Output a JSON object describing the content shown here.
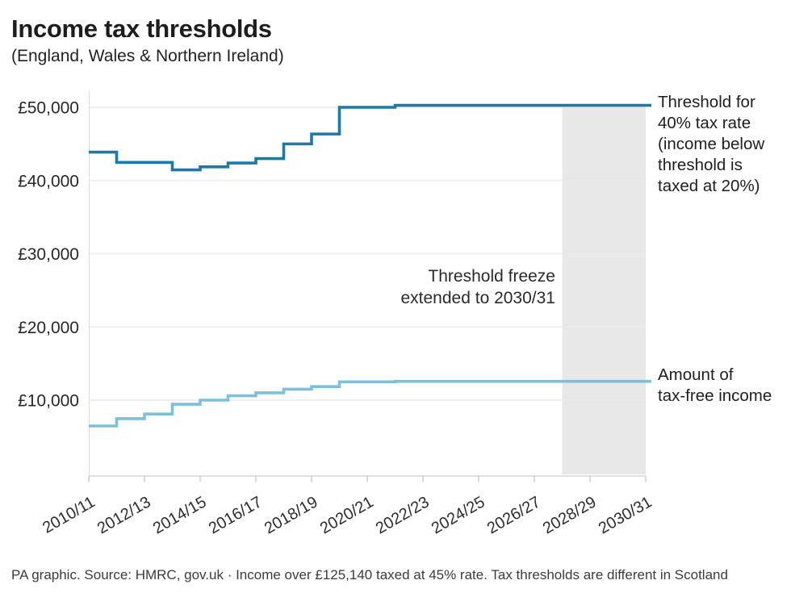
{
  "header": {
    "title": "Income tax thresholds",
    "subtitle": "(England, Wales & Northern Ireland)"
  },
  "annotations": {
    "freeze_note": "Threshold freeze\nextended to 2030/31",
    "series1_label": "Threshold for\n40% tax rate\n(income below\nthreshold is\ntaxed at 20%)",
    "series2_label": "Amount of\ntax-free income"
  },
  "footer": {
    "source_line": "PA graphic. Source: HMRC, gov.uk · Income over £125,140 taxed at 45% rate. Tax thresholds are different in Scotland"
  },
  "colors": {
    "series1": "#1a7ba8",
    "series2": "#7cc0da",
    "highlight_band": "#e8e8e8",
    "gridline": "#ececec",
    "axis_line": "#d8d8d8",
    "tick": "#c9c9c9",
    "tick_label": "#2d2d2d"
  },
  "chart_data": {
    "type": "line",
    "subtype": "step-after",
    "title": "Income tax thresholds",
    "subtitle": "(England, Wales & Northern Ireland)",
    "xlabel": "",
    "ylabel": "",
    "ylim": [
      0,
      52000
    ],
    "grid": "horizontal",
    "legend_position": "right-of-line-ends",
    "categories": [
      "2010/11",
      "2011/12",
      "2012/13",
      "2013/14",
      "2014/15",
      "2015/16",
      "2016/17",
      "2017/18",
      "2018/19",
      "2019/20",
      "2020/21",
      "2021/22",
      "2022/23",
      "2023/24",
      "2024/25",
      "2025/26",
      "2026/27",
      "2027/28",
      "2028/29",
      "2029/30",
      "2030/31"
    ],
    "series": [
      {
        "name": "Threshold for 40% tax rate (income below threshold is taxed at 20%)",
        "color": "#1a7ba8",
        "values": [
          43875,
          42475,
          42475,
          41450,
          41865,
          42385,
          43000,
          45000,
          46350,
          50000,
          50000,
          50270,
          50270,
          50270,
          50270,
          50270,
          50270,
          50270,
          50270,
          50270,
          50270
        ]
      },
      {
        "name": "Amount of tax-free income",
        "color": "#7cc0da",
        "values": [
          6475,
          7475,
          8105,
          9440,
          10000,
          10600,
          11000,
          11500,
          11850,
          12500,
          12500,
          12570,
          12570,
          12570,
          12570,
          12570,
          12570,
          12570,
          12570,
          12570,
          12570
        ]
      }
    ],
    "x_tick_labels": [
      "2010/11",
      "2012/13",
      "2014/15",
      "2016/17",
      "2018/19",
      "2020/21",
      "2022/23",
      "2024/25",
      "2026/27",
      "2028/29",
      "2030/31"
    ],
    "y_ticks": [
      {
        "value": 50000,
        "label": "£50,000"
      },
      {
        "value": 40000,
        "label": "£40,000"
      },
      {
        "value": 30000,
        "label": "£30,000"
      },
      {
        "value": 20000,
        "label": "£20,000"
      },
      {
        "value": 10000,
        "label": "£10,000"
      }
    ],
    "highlight_band": {
      "from": "2027/28",
      "to": "2030/31",
      "color": "#e8e8e8"
    },
    "annotation": "Threshold freeze extended to 2030/31"
  }
}
